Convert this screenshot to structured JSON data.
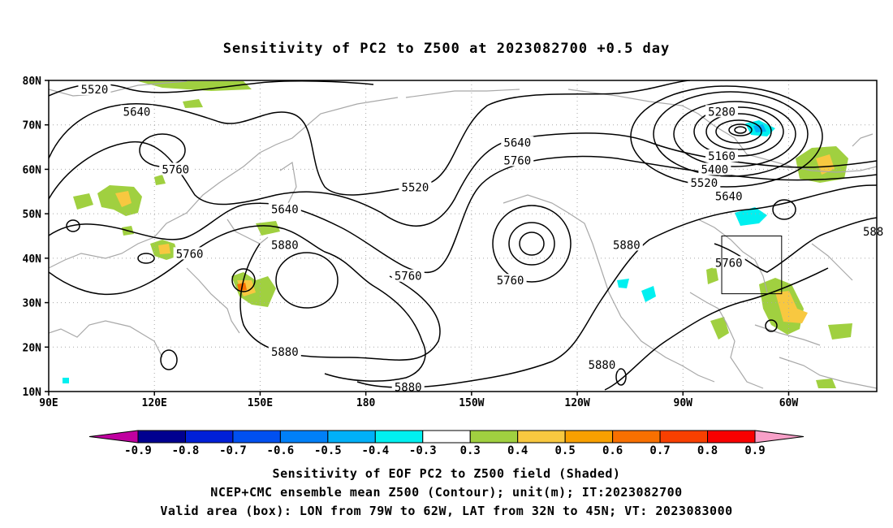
{
  "title": "Sensitivity of PC2 to Z500 at 2023082700 +0.5 day",
  "map": {
    "lat_labels": [
      "80N",
      "70N",
      "60N",
      "50N",
      "40N",
      "30N",
      "20N",
      "10N"
    ],
    "lat_values": [
      80,
      70,
      60,
      50,
      40,
      30,
      20,
      10
    ],
    "lon_labels": [
      "90E",
      "120E",
      "150E",
      "180",
      "150W",
      "120W",
      "90W",
      "60W"
    ],
    "lon_values": [
      90,
      120,
      150,
      180,
      210,
      240,
      270,
      300
    ],
    "lon_range": [
      90,
      325
    ],
    "lat_range": [
      10,
      80
    ],
    "valid_box": {
      "lon": [
        281,
        298
      ],
      "lat": [
        32,
        45
      ]
    },
    "contour_labels": [
      {
        "text": "5520",
        "lon": 103,
        "lat": 78
      },
      {
        "text": "5640",
        "lon": 115,
        "lat": 73
      },
      {
        "text": "5760",
        "lon": 126,
        "lat": 60
      },
      {
        "text": "5760",
        "lon": 130,
        "lat": 41
      },
      {
        "text": "5640",
        "lon": 157,
        "lat": 51
      },
      {
        "text": "5880",
        "lon": 157,
        "lat": 43
      },
      {
        "text": "5880",
        "lon": 157,
        "lat": 19
      },
      {
        "text": "5520",
        "lon": 194,
        "lat": 56
      },
      {
        "text": "5760",
        "lon": 192,
        "lat": 36
      },
      {
        "text": "5880",
        "lon": 192,
        "lat": 11
      },
      {
        "text": "5640",
        "lon": 223,
        "lat": 66
      },
      {
        "text": "5760",
        "lon": 223,
        "lat": 62
      },
      {
        "text": "5760",
        "lon": 221,
        "lat": 35
      },
      {
        "text": "5880",
        "lon": 254,
        "lat": 43
      },
      {
        "text": "5880",
        "lon": 247,
        "lat": 16
      },
      {
        "text": "5280",
        "lon": 281,
        "lat": 73
      },
      {
        "text": "5160",
        "lon": 281,
        "lat": 63
      },
      {
        "text": "5400",
        "lon": 279,
        "lat": 60
      },
      {
        "text": "5520",
        "lon": 276,
        "lat": 57
      },
      {
        "text": "5640",
        "lon": 283,
        "lat": 54
      },
      {
        "text": "5760",
        "lon": 283,
        "lat": 39
      },
      {
        "text": "588",
        "lon": 324,
        "lat": 46
      }
    ]
  },
  "colorbar": {
    "labels": [
      "-0.9",
      "-0.8",
      "-0.7",
      "-0.6",
      "-0.5",
      "-0.4",
      "-0.3",
      "0.3",
      "0.4",
      "0.5",
      "0.6",
      "0.7",
      "0.8",
      "0.9"
    ],
    "colors": [
      "#000090",
      "#0020d8",
      "#0050f0",
      "#0080f8",
      "#00b0f8",
      "#00f0f0",
      "#ffffff",
      "#a0d040",
      "#f8c840",
      "#f8a000",
      "#f87000",
      "#f84000",
      "#f80000"
    ],
    "low_end_color": "#c000a0",
    "high_end_color": "#f8a0c8"
  },
  "captions": {
    "line1": "Sensitivity of EOF PC2 to Z500 field (Shaded)",
    "line2": "NCEP+CMC ensemble mean Z500 (Contour); unit(m); IT:2023082700",
    "line3": "Valid area (box): LON from 79W to 62W, LAT from 32N to 45N; VT: 2023083000"
  }
}
